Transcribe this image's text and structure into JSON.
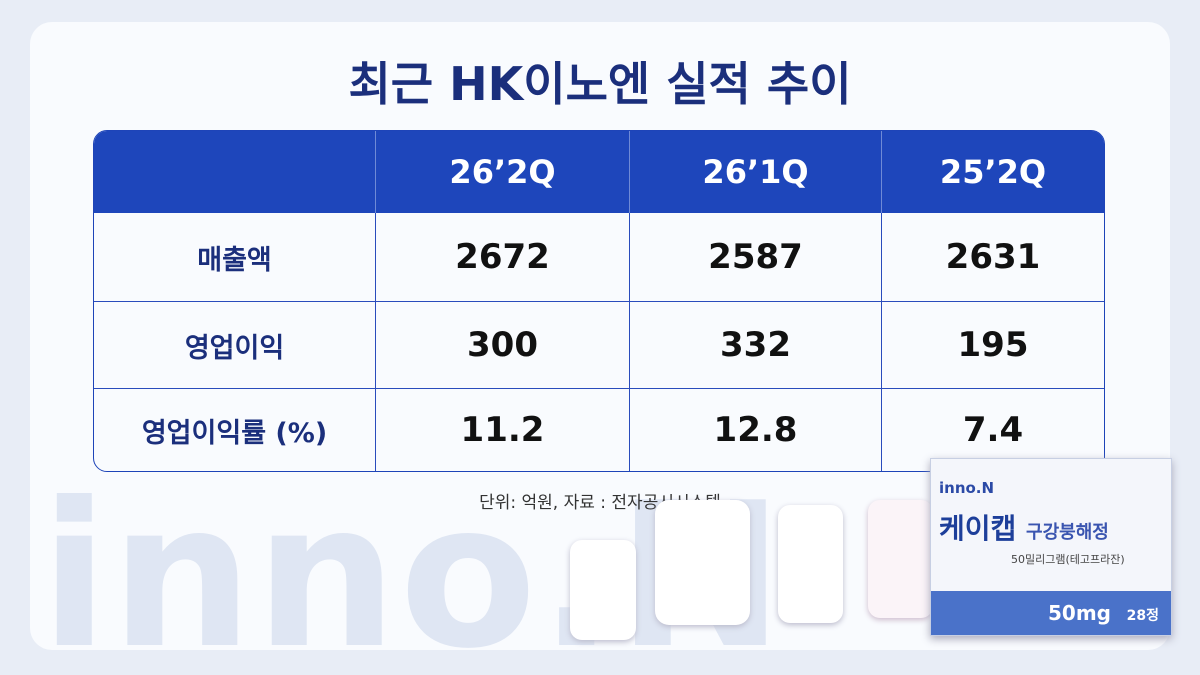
{
  "title": "최근 HK이노엔 실적 추이",
  "table": {
    "columns": [
      "26’2Q",
      "26’1Q",
      "25’2Q"
    ],
    "rows": [
      {
        "label": "매출액",
        "values": [
          2672,
          2587,
          2631
        ]
      },
      {
        "label": "영업이익",
        "values": [
          300,
          332,
          195
        ]
      },
      {
        "label": "영업이익률 (%)",
        "values": [
          11.2,
          12.8,
          7.4
        ]
      }
    ]
  },
  "source": "단위: 억원, 자료 : 전자공시시스템",
  "watermark": "inno.N",
  "product": {
    "brand": "inno.N",
    "name": "케이캡",
    "form": "구강붕해정",
    "sub": "50밀리그램(테고프라잔)",
    "dose": "50mg",
    "count": "28정"
  }
}
